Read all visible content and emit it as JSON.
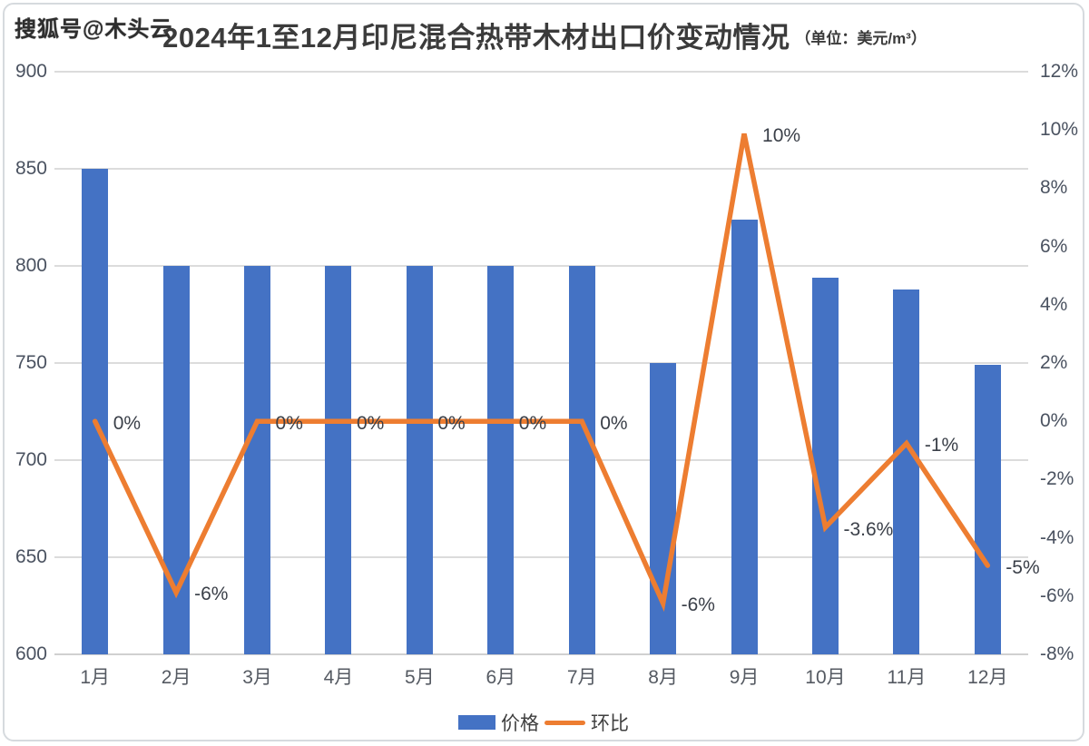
{
  "watermark": "搜狐号@木头云",
  "header": {
    "title": "2024年1至12月印尼混合热带木材出口价变动情况",
    "unit": "（单位：美元/m³）"
  },
  "legend": {
    "items": [
      {
        "label": "价格",
        "type": "bar",
        "color": "#4472C4"
      },
      {
        "label": "环比",
        "type": "line",
        "color": "#ED7D31"
      }
    ],
    "position": "bottom"
  },
  "colors": {
    "bar": "#4472C4",
    "line": "#ED7D31",
    "grid": "#DCDCDC",
    "axis_text": "#4A5260",
    "data_label": "#3A3F48",
    "title": "#3B3B3B",
    "background": "#FFFFFF",
    "card_border": "#D6DADE"
  },
  "chart_data": {
    "type": "combo-bar-line",
    "title": "2024年1至12月印尼混合热带木材出口价变动情况",
    "unit": "美元/m³",
    "categories": [
      "1月",
      "2月",
      "3月",
      "4月",
      "5月",
      "6月",
      "7月",
      "8月",
      "9月",
      "10月",
      "11月",
      "12月"
    ],
    "series": [
      {
        "name": "价格",
        "type": "bar",
        "axis": "left",
        "color": "#4472C4",
        "values": [
          850,
          800,
          800,
          800,
          800,
          800,
          800,
          750,
          824,
          794,
          788,
          749
        ]
      },
      {
        "name": "环比",
        "type": "line",
        "axis": "right",
        "color": "#ED7D31",
        "values": [
          0,
          -6,
          0,
          0,
          0,
          0,
          0,
          -6,
          10,
          -3.6,
          -1,
          -5
        ],
        "labels": [
          "0%",
          "-6%",
          "0%",
          "0%",
          "0%",
          "0%",
          "0%",
          "-6%",
          "10%",
          "-3.6%",
          "-1%",
          "-5%"
        ],
        "values_precise": [
          0,
          -5.88,
          0,
          0,
          0,
          0,
          0,
          -6.25,
          9.87,
          -3.64,
          -0.76,
          -4.95
        ]
      }
    ],
    "left_axis": {
      "min": 600,
      "max": 900,
      "step": 50,
      "tick_labels": [
        "900",
        "850",
        "800",
        "750",
        "700",
        "650",
        "600"
      ]
    },
    "right_axis": {
      "min": -8,
      "max": 12,
      "step": 2,
      "tick_labels": [
        "12%",
        "10%",
        "8%",
        "6%",
        "4%",
        "2%",
        "0%",
        "-2%",
        "-4%",
        "-6%",
        "-8%"
      ]
    },
    "grid": true,
    "legend_position": "bottom"
  }
}
